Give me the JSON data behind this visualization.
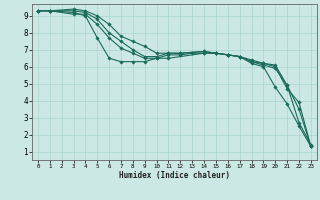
{
  "xlabel": "Humidex (Indice chaleur)",
  "background_color": "#cce8e4",
  "grid_color": "#aad4ce",
  "line_color": "#1a6b5a",
  "xlim": [
    -0.5,
    23.5
  ],
  "ylim": [
    0.5,
    9.7
  ],
  "yticks": [
    1,
    2,
    3,
    4,
    5,
    6,
    7,
    8,
    9
  ],
  "xticks": [
    0,
    1,
    2,
    3,
    4,
    5,
    6,
    7,
    8,
    9,
    10,
    11,
    12,
    13,
    14,
    15,
    16,
    17,
    18,
    19,
    20,
    21,
    22,
    23
  ],
  "series": [
    {
      "x": [
        0,
        1,
        3,
        4,
        5,
        6,
        7,
        8,
        9,
        10,
        11,
        12,
        13,
        14,
        15,
        16,
        17,
        18,
        19,
        20,
        21,
        22,
        23
      ],
      "y": [
        9.3,
        9.3,
        9.2,
        9.0,
        7.7,
        6.5,
        6.3,
        6.3,
        6.3,
        6.5,
        6.7,
        6.7,
        6.8,
        6.8,
        6.8,
        6.7,
        6.6,
        6.2,
        6.0,
        4.8,
        3.8,
        2.5,
        1.3
      ]
    },
    {
      "x": [
        0,
        1,
        3,
        4,
        5,
        6,
        7,
        8,
        9,
        10,
        11,
        14,
        15,
        16,
        17,
        18,
        19,
        20,
        21,
        22,
        23
      ],
      "y": [
        9.3,
        9.3,
        9.1,
        9.1,
        8.5,
        7.7,
        7.1,
        6.8,
        6.5,
        6.5,
        6.5,
        6.8,
        6.8,
        6.7,
        6.6,
        6.3,
        6.1,
        5.9,
        4.9,
        2.7,
        1.4
      ]
    },
    {
      "x": [
        0,
        1,
        3,
        4,
        5,
        6,
        7,
        8,
        9,
        10,
        11,
        12,
        14,
        15,
        16,
        17,
        18,
        19,
        20,
        21,
        22,
        23
      ],
      "y": [
        9.3,
        9.3,
        9.3,
        9.2,
        8.8,
        8.0,
        7.5,
        7.0,
        6.6,
        6.6,
        6.8,
        6.8,
        6.9,
        6.8,
        6.7,
        6.6,
        6.4,
        6.2,
        6.0,
        4.7,
        3.9,
        1.3
      ]
    },
    {
      "x": [
        0,
        1,
        3,
        4,
        5,
        6,
        7,
        8,
        9,
        10,
        11,
        12,
        14,
        15,
        16,
        17,
        18,
        19,
        20,
        21,
        22,
        23
      ],
      "y": [
        9.3,
        9.3,
        9.4,
        9.3,
        9.0,
        8.5,
        7.8,
        7.5,
        7.2,
        6.8,
        6.8,
        6.8,
        6.9,
        6.8,
        6.7,
        6.6,
        6.3,
        6.2,
        6.1,
        4.9,
        3.5,
        1.3
      ]
    }
  ]
}
